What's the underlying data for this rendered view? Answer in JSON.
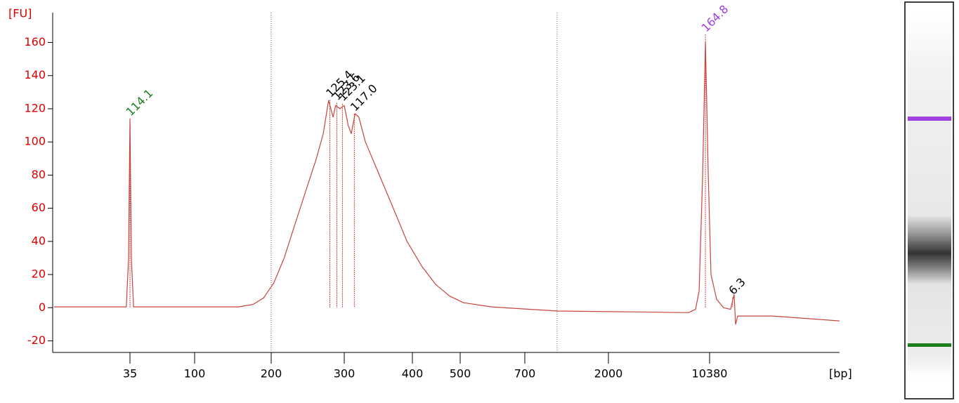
{
  "chart_data": {
    "type": "line",
    "y_unit": "[FU]",
    "x_unit": "[bp]",
    "log_x": true,
    "xlim": [
      10,
      86000
    ],
    "xticks": [
      35,
      100,
      200,
      300,
      400,
      500,
      700,
      2000,
      10380
    ],
    "ylim": [
      -27,
      178
    ],
    "yticks": [
      -20,
      0,
      20,
      40,
      60,
      80,
      100,
      120,
      140,
      160
    ],
    "grid": false,
    "axis_label_color": "#dd0000",
    "region_lines": [
      200,
      1050
    ],
    "series": [
      {
        "color": "#c8443c",
        "x": [
          10.2,
          33.0,
          34.2,
          35,
          35.8,
          37.1,
          149,
          170,
          187,
          203,
          215,
          228,
          242,
          257,
          267,
          275,
          282,
          286,
          293,
          300,
          305,
          309,
          314,
          319,
          328,
          348,
          369,
          391,
          418,
          446,
          476,
          509,
          589,
          1050,
          2950,
          7360,
          8260,
          8750,
          9270,
          9700,
          10160,
          10620,
          11640,
          13040,
          14610,
          15470,
          15840,
          16400,
          29000,
          86000
        ],
        "values": [
          0.5,
          0.5,
          30,
          114,
          30,
          0.5,
          0.5,
          2,
          6,
          15,
          30,
          50,
          70,
          90,
          105,
          125,
          115,
          122,
          120,
          122,
          110,
          105,
          117,
          115,
          100,
          80,
          60,
          40,
          25,
          14,
          7,
          3,
          0.5,
          -2,
          -2.5,
          -3,
          -1,
          10,
          80,
          160,
          80,
          20,
          5,
          0,
          -1,
          8,
          -10,
          -5,
          -5,
          -8
        ]
      }
    ],
    "peaks": [
      {
        "label": "114.1",
        "x": 35,
        "y": 114.1,
        "color": "#1a7f1a"
      },
      {
        "label": "125.4",
        "x": 277,
        "y": 125.4,
        "color": "#000000"
      },
      {
        "label": "123.6",
        "x": 288,
        "y": 123.6,
        "color": "#000000"
      },
      {
        "label": "123.1",
        "x": 297,
        "y": 123.1,
        "color": "#000000"
      },
      {
        "label": "117.0",
        "x": 313,
        "y": 117.0,
        "color": "#000000"
      },
      {
        "label": "164.8",
        "x": 9700,
        "y": 164.8,
        "color": "#a040e0"
      },
      {
        "label": "6.3",
        "x": 15100,
        "y": 6.3,
        "color": "#000000"
      }
    ]
  }
}
